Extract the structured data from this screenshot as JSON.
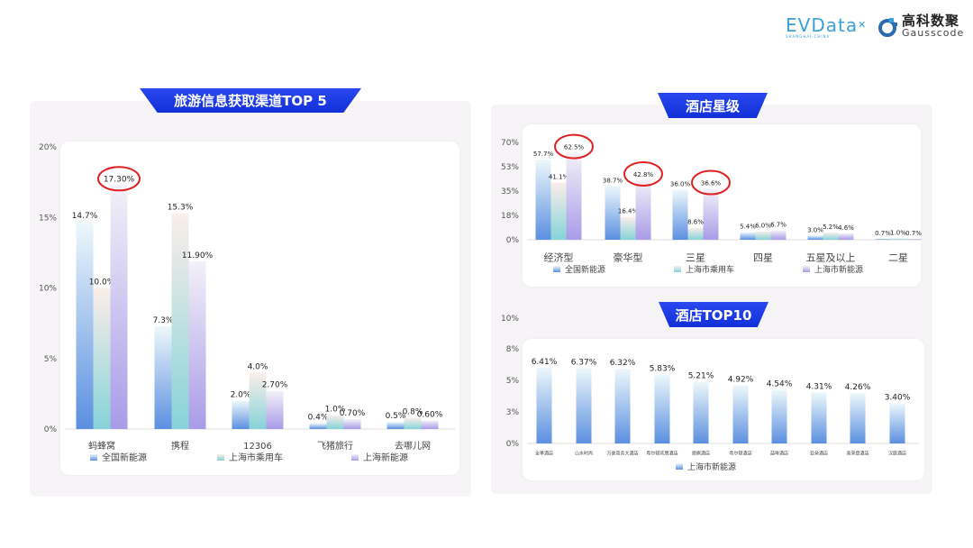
{
  "logos": {
    "evdata": "EVData",
    "evdata_sub": "SHANGHAI CHINA",
    "gauss_cn": "高科数聚",
    "gauss_en": "Gausscode"
  },
  "colors": {
    "series1": "#5b8fe0",
    "series2": "#86d3d8",
    "series3": "#a99be8",
    "banner": "#1f3be6",
    "highlight": "#e02020"
  },
  "chart_data": [
    {
      "type": "bar",
      "title": "旅游信息获取渠道TOP 5",
      "categories": [
        "蚂蜂窝",
        "携程",
        "12306",
        "飞猪旅行",
        "去哪儿网"
      ],
      "series": [
        {
          "name": "全国新能源",
          "values": [
            14.7,
            7.3,
            2.0,
            0.4,
            0.5
          ],
          "labels": [
            "14.7%",
            "7.3%",
            "2.0%",
            "0.4%",
            "0.5%"
          ]
        },
        {
          "name": "上海市乘用车",
          "values": [
            10.0,
            15.3,
            4.0,
            1.0,
            0.8
          ],
          "labels": [
            "10.0%",
            "15.3%",
            "4.0%",
            "1.0%",
            "0.8%"
          ]
        },
        {
          "name": "上海新能源",
          "values": [
            17.3,
            11.9,
            2.7,
            0.7,
            0.6
          ],
          "labels": [
            "17.30%",
            "11.90%",
            "2.70%",
            "0.70%",
            "0.60%"
          ]
        }
      ],
      "yticks": [
        "0%",
        "5%",
        "10%",
        "15%",
        "20%"
      ],
      "ylim": [
        0,
        20
      ],
      "legend": "bottom",
      "highlighted": [
        {
          "series": 2,
          "category": 0
        }
      ]
    },
    {
      "type": "bar",
      "title": "酒店星级",
      "categories": [
        "经济型",
        "豪华型",
        "三星",
        "四星",
        "五星及以上",
        "二星"
      ],
      "series": [
        {
          "name": "全国新能源",
          "values": [
            57.7,
            38.7,
            36.0,
            5.4,
            3.0,
            0.7
          ],
          "labels": [
            "57.7%",
            "38.7%",
            "36.0%",
            "5.4%",
            "3.0%",
            "0.7%"
          ]
        },
        {
          "name": "上海市乘用车",
          "values": [
            41.1,
            16.4,
            8.6,
            6.0,
            5.2,
            1.0
          ],
          "labels": [
            "41.1%",
            "16.4%",
            "8.6%",
            "6.0%",
            "5.2%",
            "1.0%"
          ]
        },
        {
          "name": "上海市新能源",
          "values": [
            62.5,
            42.8,
            36.6,
            6.7,
            4.6,
            0.7
          ],
          "labels": [
            "62.5%",
            "42.8%",
            "36.6%",
            "6.7%",
            "4.6%",
            "0.7%"
          ]
        }
      ],
      "yticks": [
        "0%",
        "18%",
        "35%",
        "53%",
        "70%"
      ],
      "ylim": [
        0,
        70
      ],
      "legend": "bottom",
      "highlighted": [
        {
          "series": 2,
          "category": 0
        },
        {
          "series": 2,
          "category": 1
        },
        {
          "series": 2,
          "category": 2
        }
      ]
    },
    {
      "type": "bar",
      "title": "酒店TOP10",
      "categories": [
        "全季酒店",
        "山水时尚",
        "万豪商务大酒店",
        "希尔顿欢朋酒店",
        "丽枫酒店",
        "希尔顿酒店",
        "喆啡酒店",
        "亚朵酒店",
        "喜来登酒店",
        "汉庭酒店"
      ],
      "series": [
        {
          "name": "上海市新能源",
          "values": [
            6.41,
            6.37,
            6.32,
            5.83,
            5.21,
            4.92,
            4.54,
            4.31,
            4.26,
            3.4
          ],
          "labels": [
            "6.41%",
            "6.37%",
            "6.32%",
            "5.83%",
            "5.21%",
            "4.92%",
            "4.54%",
            "4.31%",
            "4.26%",
            "3.40%"
          ]
        }
      ],
      "yticks": [
        "0%",
        "3%",
        "5%",
        "8%",
        "10%"
      ],
      "ylim": [
        0,
        8
      ],
      "legend": "bottom",
      "highlighted": []
    }
  ]
}
